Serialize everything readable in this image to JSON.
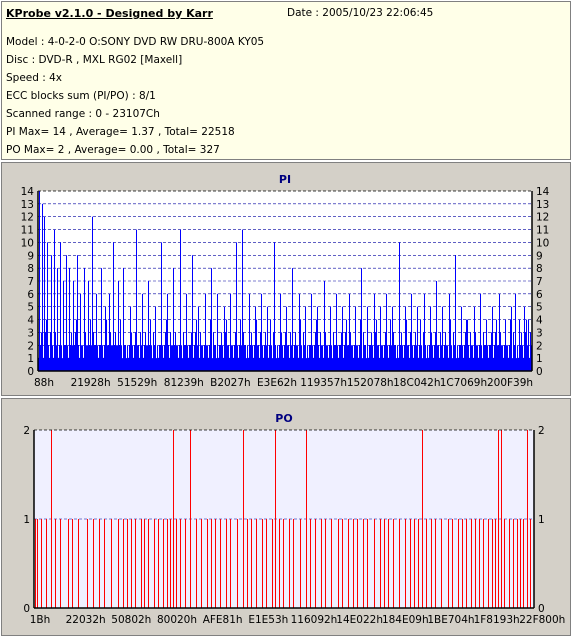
{
  "info": {
    "title": "KProbe v2.1.0 - Designed by Karr",
    "date": "Date : 2005/10/23 22:06:45",
    "model": "Model : 4-0-2-0 O:SONY    DVD RW DRU-800A  KY05",
    "disc": "Disc : DVD-R , MXL RG02 [Maxell]",
    "speed": "Speed : 4x",
    "ecc": "ECC blocks sum (PI/PO) : 8/1",
    "range": "Scanned range : 0 - 23107Ch",
    "pi_stats": "PI Max= 14 , Average= 1.37 , Total= 22518",
    "po_stats": "PO Max= 2 , Average= 0.00 , Total= 327"
  },
  "chart_data": [
    {
      "type": "bar",
      "title": "PI",
      "color": "#0000ff",
      "ylim": [
        0,
        14
      ],
      "yticks": [
        0,
        1,
        2,
        3,
        4,
        5,
        6,
        7,
        8,
        9,
        10,
        11,
        12,
        13,
        14
      ],
      "xlim": [
        0,
        237000
      ],
      "x_tick_labels": [
        "88h",
        "21928h",
        "51529h",
        "81239h",
        "B2027h",
        "E3E62h",
        "119357h",
        "152078h",
        "18C042h",
        "1C7069h",
        "200F39h"
      ],
      "baseline_pattern": [
        1,
        2,
        2,
        3,
        2,
        1,
        2,
        3,
        4,
        2,
        2,
        1,
        3,
        2,
        2,
        1,
        2,
        3,
        2,
        2,
        1,
        2,
        4,
        2,
        1,
        3,
        2,
        2,
        1,
        2
      ],
      "peaks": [
        {
          "x": 600,
          "y": 14
        },
        {
          "x": 1800,
          "y": 13
        },
        {
          "x": 3000,
          "y": 12
        },
        {
          "x": 4500,
          "y": 10
        },
        {
          "x": 6000,
          "y": 9
        },
        {
          "x": 7800,
          "y": 11
        },
        {
          "x": 9200,
          "y": 8
        },
        {
          "x": 10500,
          "y": 10
        },
        {
          "x": 12000,
          "y": 7
        },
        {
          "x": 13500,
          "y": 9
        },
        {
          "x": 15000,
          "y": 8
        },
        {
          "x": 16800,
          "y": 7
        },
        {
          "x": 18500,
          "y": 9
        },
        {
          "x": 20000,
          "y": 6
        },
        {
          "x": 22000,
          "y": 8
        },
        {
          "x": 24000,
          "y": 7
        },
        {
          "x": 26000,
          "y": 12
        },
        {
          "x": 28000,
          "y": 6
        },
        {
          "x": 30000,
          "y": 8
        },
        {
          "x": 32000,
          "y": 5
        },
        {
          "x": 34000,
          "y": 6
        },
        {
          "x": 36000,
          "y": 10
        },
        {
          "x": 38500,
          "y": 7
        },
        {
          "x": 41000,
          "y": 8
        },
        {
          "x": 44000,
          "y": 5
        },
        {
          "x": 47000,
          "y": 11
        },
        {
          "x": 50000,
          "y": 6
        },
        {
          "x": 53000,
          "y": 7
        },
        {
          "x": 56000,
          "y": 5
        },
        {
          "x": 59000,
          "y": 10
        },
        {
          "x": 62000,
          "y": 6
        },
        {
          "x": 65000,
          "y": 8
        },
        {
          "x": 68000,
          "y": 11
        },
        {
          "x": 71000,
          "y": 6
        },
        {
          "x": 74000,
          "y": 9
        },
        {
          "x": 77000,
          "y": 5
        },
        {
          "x": 80000,
          "y": 6
        },
        {
          "x": 83000,
          "y": 8
        },
        {
          "x": 86000,
          "y": 6
        },
        {
          "x": 89000,
          "y": 5
        },
        {
          "x": 92000,
          "y": 6
        },
        {
          "x": 95000,
          "y": 10
        },
        {
          "x": 98000,
          "y": 11
        },
        {
          "x": 101000,
          "y": 6
        },
        {
          "x": 104000,
          "y": 5
        },
        {
          "x": 107000,
          "y": 6
        },
        {
          "x": 110000,
          "y": 5
        },
        {
          "x": 113000,
          "y": 10
        },
        {
          "x": 116000,
          "y": 6
        },
        {
          "x": 119000,
          "y": 5
        },
        {
          "x": 122000,
          "y": 8
        },
        {
          "x": 125000,
          "y": 6
        },
        {
          "x": 128000,
          "y": 5
        },
        {
          "x": 131000,
          "y": 6
        },
        {
          "x": 134000,
          "y": 5
        },
        {
          "x": 137000,
          "y": 7
        },
        {
          "x": 140000,
          "y": 5
        },
        {
          "x": 143000,
          "y": 6
        },
        {
          "x": 146000,
          "y": 5
        },
        {
          "x": 149000,
          "y": 6
        },
        {
          "x": 152000,
          "y": 5
        },
        {
          "x": 155000,
          "y": 8
        },
        {
          "x": 158000,
          "y": 5
        },
        {
          "x": 161000,
          "y": 6
        },
        {
          "x": 164000,
          "y": 5
        },
        {
          "x": 167000,
          "y": 6
        },
        {
          "x": 170000,
          "y": 5
        },
        {
          "x": 173000,
          "y": 10
        },
        {
          "x": 176000,
          "y": 5
        },
        {
          "x": 179000,
          "y": 6
        },
        {
          "x": 182000,
          "y": 5
        },
        {
          "x": 185000,
          "y": 6
        },
        {
          "x": 188000,
          "y": 5
        },
        {
          "x": 191000,
          "y": 7
        },
        {
          "x": 194000,
          "y": 5
        },
        {
          "x": 197000,
          "y": 6
        },
        {
          "x": 200000,
          "y": 9
        },
        {
          "x": 203000,
          "y": 5
        },
        {
          "x": 206000,
          "y": 4
        },
        {
          "x": 209000,
          "y": 5
        },
        {
          "x": 212000,
          "y": 6
        },
        {
          "x": 215000,
          "y": 4
        },
        {
          "x": 218000,
          "y": 5
        },
        {
          "x": 221000,
          "y": 6
        },
        {
          "x": 224000,
          "y": 4
        },
        {
          "x": 227000,
          "y": 5
        },
        {
          "x": 229000,
          "y": 6
        },
        {
          "x": 231000,
          "y": 4
        },
        {
          "x": 233000,
          "y": 5
        },
        {
          "x": 235000,
          "y": 4
        }
      ]
    },
    {
      "type": "bar",
      "title": "PO",
      "color": "#ff0000",
      "ylim": [
        0,
        2
      ],
      "yticks": [
        0,
        1,
        2
      ],
      "xlim": [
        0,
        237000
      ],
      "x_tick_labels": [
        "1Bh",
        "22032h",
        "50802h",
        "80020h",
        "AFE81h",
        "E1E53h",
        "116092h",
        "14E022h",
        "184E09h",
        "1BE704h",
        "1F8193h",
        "22F800h"
      ],
      "spikes": [
        {
          "x": 300,
          "y": 1
        },
        {
          "x": 1500,
          "y": 1
        },
        {
          "x": 3500,
          "y": 1
        },
        {
          "x": 5500,
          "y": 1
        },
        {
          "x": 8000,
          "y": 2
        },
        {
          "x": 9800,
          "y": 1
        },
        {
          "x": 12500,
          "y": 1
        },
        {
          "x": 16000,
          "y": 1
        },
        {
          "x": 18000,
          "y": 1
        },
        {
          "x": 21000,
          "y": 1
        },
        {
          "x": 25000,
          "y": 1
        },
        {
          "x": 28000,
          "y": 1
        },
        {
          "x": 31000,
          "y": 1
        },
        {
          "x": 33000,
          "y": 1
        },
        {
          "x": 36500,
          "y": 1
        },
        {
          "x": 40000,
          "y": 1
        },
        {
          "x": 42000,
          "y": 1
        },
        {
          "x": 44000,
          "y": 1
        },
        {
          "x": 46000,
          "y": 1
        },
        {
          "x": 48000,
          "y": 1
        },
        {
          "x": 50500,
          "y": 1
        },
        {
          "x": 52000,
          "y": 1
        },
        {
          "x": 54000,
          "y": 1
        },
        {
          "x": 57000,
          "y": 1
        },
        {
          "x": 59000,
          "y": 1
        },
        {
          "x": 61000,
          "y": 1
        },
        {
          "x": 63000,
          "y": 1
        },
        {
          "x": 64500,
          "y": 1
        },
        {
          "x": 66000,
          "y": 2
        },
        {
          "x": 67500,
          "y": 1
        },
        {
          "x": 69000,
          "y": 1
        },
        {
          "x": 71500,
          "y": 1
        },
        {
          "x": 74000,
          "y": 2
        },
        {
          "x": 77000,
          "y": 1
        },
        {
          "x": 79000,
          "y": 1
        },
        {
          "x": 82000,
          "y": 1
        },
        {
          "x": 84000,
          "y": 1
        },
        {
          "x": 86000,
          "y": 1
        },
        {
          "x": 88000,
          "y": 1
        },
        {
          "x": 91000,
          "y": 1
        },
        {
          "x": 93000,
          "y": 1
        },
        {
          "x": 96000,
          "y": 1
        },
        {
          "x": 99000,
          "y": 2
        },
        {
          "x": 101000,
          "y": 1
        },
        {
          "x": 103000,
          "y": 1
        },
        {
          "x": 105000,
          "y": 1
        },
        {
          "x": 108000,
          "y": 1
        },
        {
          "x": 110000,
          "y": 1
        },
        {
          "x": 113000,
          "y": 1
        },
        {
          "x": 114000,
          "y": 2
        },
        {
          "x": 116000,
          "y": 1
        },
        {
          "x": 118000,
          "y": 1
        },
        {
          "x": 121000,
          "y": 1
        },
        {
          "x": 123000,
          "y": 1
        },
        {
          "x": 126000,
          "y": 1
        },
        {
          "x": 129000,
          "y": 2
        },
        {
          "x": 131000,
          "y": 1
        },
        {
          "x": 133000,
          "y": 1
        },
        {
          "x": 136000,
          "y": 1
        },
        {
          "x": 138000,
          "y": 1
        },
        {
          "x": 141000,
          "y": 1
        },
        {
          "x": 144000,
          "y": 1
        },
        {
          "x": 146000,
          "y": 1
        },
        {
          "x": 149000,
          "y": 1
        },
        {
          "x": 151000,
          "y": 1
        },
        {
          "x": 153000,
          "y": 1
        },
        {
          "x": 156000,
          "y": 1
        },
        {
          "x": 158000,
          "y": 1
        },
        {
          "x": 161000,
          "y": 1
        },
        {
          "x": 164000,
          "y": 1
        },
        {
          "x": 166000,
          "y": 1
        },
        {
          "x": 168000,
          "y": 1
        },
        {
          "x": 170000,
          "y": 1
        },
        {
          "x": 173000,
          "y": 1
        },
        {
          "x": 176000,
          "y": 1
        },
        {
          "x": 178000,
          "y": 1
        },
        {
          "x": 180000,
          "y": 1
        },
        {
          "x": 182000,
          "y": 1
        },
        {
          "x": 184000,
          "y": 2
        },
        {
          "x": 186000,
          "y": 1
        },
        {
          "x": 188000,
          "y": 1
        },
        {
          "x": 190000,
          "y": 1
        },
        {
          "x": 193000,
          "y": 1
        },
        {
          "x": 196000,
          "y": 1
        },
        {
          "x": 198000,
          "y": 1
        },
        {
          "x": 201000,
          "y": 1
        },
        {
          "x": 203000,
          "y": 1
        },
        {
          "x": 205000,
          "y": 1
        },
        {
          "x": 207000,
          "y": 1
        },
        {
          "x": 209000,
          "y": 1
        },
        {
          "x": 211000,
          "y": 1
        },
        {
          "x": 213000,
          "y": 1
        },
        {
          "x": 215000,
          "y": 1
        },
        {
          "x": 217000,
          "y": 1
        },
        {
          "x": 218500,
          "y": 1
        },
        {
          "x": 220000,
          "y": 2
        },
        {
          "x": 221500,
          "y": 2
        },
        {
          "x": 223000,
          "y": 1
        },
        {
          "x": 225000,
          "y": 1
        },
        {
          "x": 227000,
          "y": 1
        },
        {
          "x": 229000,
          "y": 1
        },
        {
          "x": 230500,
          "y": 1
        },
        {
          "x": 232000,
          "y": 1
        },
        {
          "x": 233500,
          "y": 2
        },
        {
          "x": 235000,
          "y": 1
        }
      ]
    }
  ]
}
